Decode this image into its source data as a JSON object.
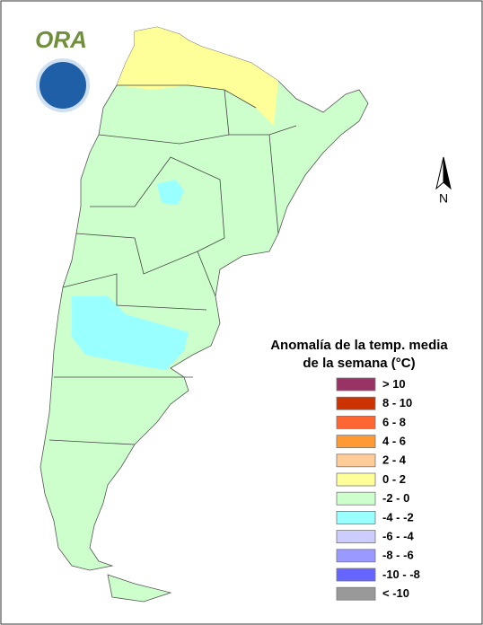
{
  "logo": {
    "text": "ORA"
  },
  "compass": {
    "label": "N"
  },
  "legend": {
    "title_lines": [
      "Anomalía de la temp. media",
      "de la semana (°C)"
    ],
    "items": [
      {
        "label": "> 10",
        "color": "#993366"
      },
      {
        "label": "8 - 10",
        "color": "#cc3300"
      },
      {
        "label": "6 - 8",
        "color": "#ff6633"
      },
      {
        "label": "4 - 6",
        "color": "#ff9933"
      },
      {
        "label": "2 - 4",
        "color": "#ffcc99"
      },
      {
        "label": "0 - 2",
        "color": "#ffff99"
      },
      {
        "label": "-2 - 0",
        "color": "#ccffcc"
      },
      {
        "label": "-4 - -2",
        "color": "#99ffff"
      },
      {
        "label": "-6 - -4",
        "color": "#ccccff"
      },
      {
        "label": "-8 - -6",
        "color": "#9999ff"
      },
      {
        "label": "-10 - -8",
        "color": "#6666ff"
      },
      {
        "label": "< -10",
        "color": "#999999"
      }
    ]
  }
}
